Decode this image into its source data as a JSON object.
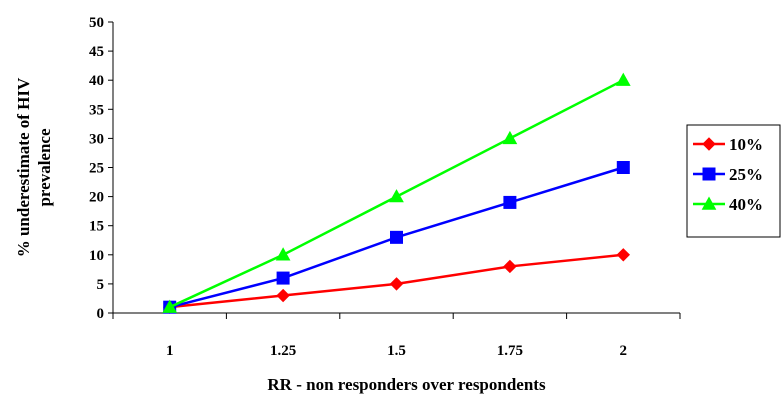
{
  "chart_data": {
    "type": "line",
    "title": "",
    "xlabel": "RR - non responders over respondents",
    "ylabel": "% underestimate of HIV prevalence",
    "ylabel_lines": [
      "% underestimate of HIV",
      "prevalence"
    ],
    "categories": [
      "1",
      "1.25",
      "1.5",
      "1.75",
      "2"
    ],
    "ylim": [
      0,
      50
    ],
    "yticks": [
      0,
      5,
      10,
      15,
      20,
      25,
      30,
      35,
      40,
      45,
      50
    ],
    "grid": false,
    "legend_position": "right",
    "series": [
      {
        "name": "10%",
        "color": "#ff0000",
        "marker": "diamond",
        "values": [
          1,
          3,
          5,
          8,
          10
        ]
      },
      {
        "name": "25%",
        "color": "#0000ff",
        "marker": "square",
        "values": [
          1,
          6,
          13,
          19,
          25
        ]
      },
      {
        "name": "40%",
        "color": "#00ff00",
        "marker": "triangle",
        "values": [
          1,
          10,
          20,
          30,
          40
        ]
      }
    ]
  }
}
